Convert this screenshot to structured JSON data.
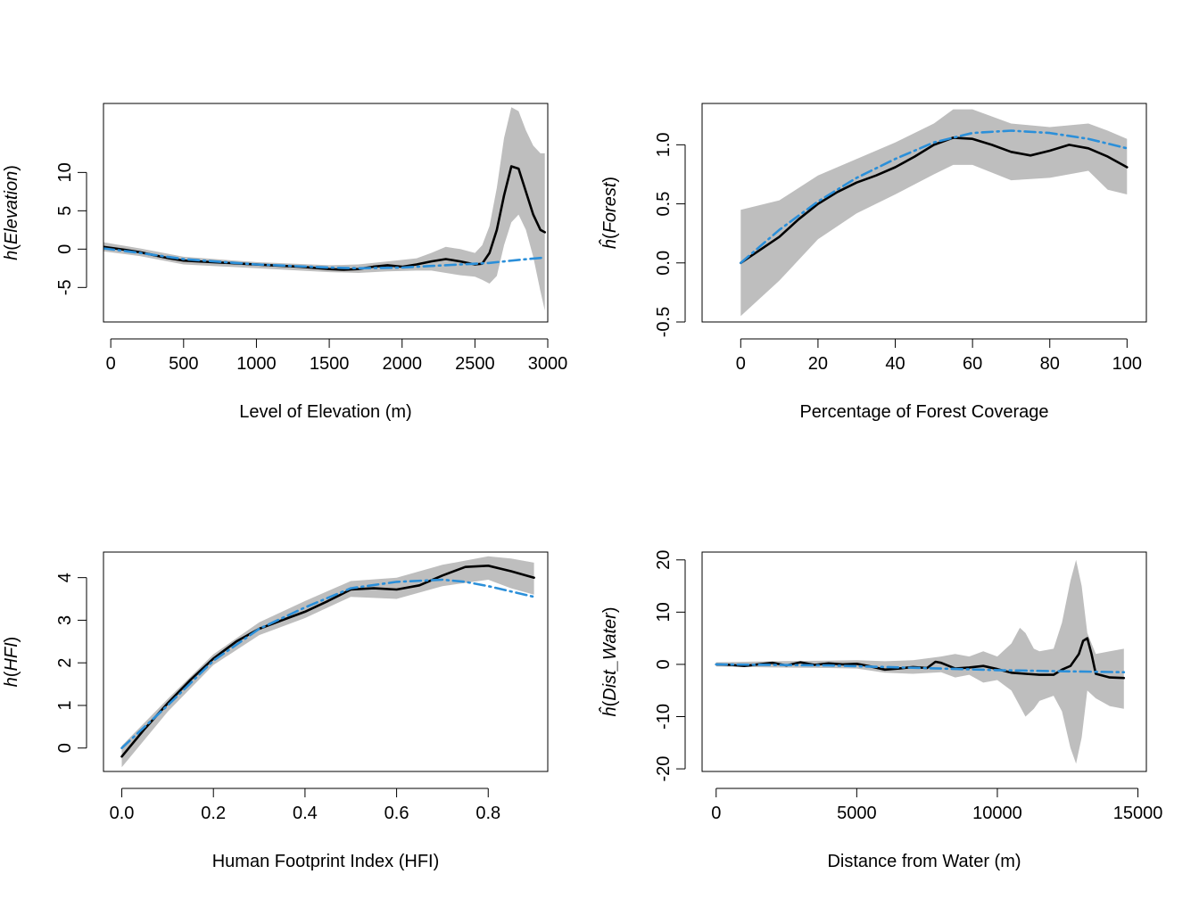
{
  "colors": {
    "estimate": "#000000",
    "reference": "#2b8fd9",
    "band": "#bebebe",
    "axis": "#000000"
  },
  "chart_data": [
    {
      "type": "line",
      "xlabel": "Level of Elevation (m)",
      "ylabel": {
        "prefix": "h",
        "hat": false,
        "var": "Elevation"
      },
      "xticks": [
        0,
        500,
        1000,
        1500,
        2000,
        2500,
        3000
      ],
      "yticks": [
        -5,
        0,
        5,
        10
      ],
      "xlim": [
        -50,
        3000
      ],
      "ylim": [
        -9.5,
        19
      ],
      "grid": false,
      "series": [
        {
          "role": "estimate",
          "x": [
            -50,
            100,
            200,
            300,
            400,
            500,
            700,
            900,
            1100,
            1300,
            1500,
            1600,
            1700,
            1800,
            1900,
            2000,
            2100,
            2200,
            2300,
            2400,
            2500,
            2550,
            2600,
            2650,
            2700,
            2750,
            2800,
            2850,
            2900,
            2950,
            2980
          ],
          "y": [
            0.3,
            -0.1,
            -0.4,
            -0.8,
            -1.2,
            -1.5,
            -1.7,
            -1.9,
            -2.1,
            -2.3,
            -2.6,
            -2.7,
            -2.6,
            -2.3,
            -2.1,
            -2.3,
            -2.0,
            -1.6,
            -1.3,
            -1.6,
            -2.0,
            -1.9,
            -0.5,
            2.5,
            7.0,
            10.8,
            10.5,
            7.5,
            4.5,
            2.5,
            2.2
          ]
        },
        {
          "role": "reference",
          "x": [
            -50,
            200,
            500,
            1000,
            1500,
            1700,
            2000,
            2200,
            2400,
            2600,
            2800,
            2980
          ],
          "y": [
            0.1,
            -0.5,
            -1.3,
            -2.0,
            -2.4,
            -2.5,
            -2.4,
            -2.2,
            -2.0,
            -1.8,
            -1.4,
            -1.1
          ]
        }
      ],
      "band": {
        "x": [
          -50,
          200,
          500,
          1000,
          1500,
          1700,
          1900,
          2100,
          2200,
          2300,
          2400,
          2500,
          2550,
          2600,
          2650,
          2700,
          2750,
          2800,
          2850,
          2900,
          2950,
          2980
        ],
        "upper": [
          0.9,
          0.1,
          -1.0,
          -1.7,
          -2.1,
          -2.0,
          -1.6,
          -1.2,
          -0.5,
          0.3,
          0.0,
          -0.5,
          0.5,
          3.0,
          8.0,
          14.5,
          18.5,
          18.0,
          15.5,
          13.5,
          12.5,
          12.5
        ],
        "lower": [
          -0.3,
          -0.9,
          -2.0,
          -2.5,
          -3.0,
          -3.1,
          -2.9,
          -2.8,
          -2.8,
          -3.1,
          -3.4,
          -3.6,
          -4.0,
          -4.5,
          -3.5,
          0.5,
          3.5,
          4.5,
          2.5,
          -1.0,
          -5.5,
          -8.0
        ]
      }
    },
    {
      "type": "line",
      "xlabel": "Percentage of Forest Coverage",
      "ylabel": {
        "prefix": "h",
        "hat": true,
        "var": "Forest"
      },
      "xticks": [
        0,
        20,
        40,
        60,
        80,
        100
      ],
      "yticks": [
        -0.5,
        0.0,
        0.5,
        1.0
      ],
      "ytick_labels": [
        "-0.5",
        "0.0",
        "0.5",
        "1.0"
      ],
      "xlim": [
        0,
        100
      ],
      "ylim": [
        -0.5,
        1.35
      ],
      "grid": false,
      "series": [
        {
          "role": "estimate",
          "x": [
            0,
            5,
            10,
            15,
            20,
            25,
            30,
            35,
            40,
            45,
            50,
            55,
            60,
            65,
            70,
            75,
            80,
            85,
            90,
            95,
            100
          ],
          "y": [
            0.0,
            0.11,
            0.22,
            0.37,
            0.5,
            0.6,
            0.68,
            0.74,
            0.81,
            0.9,
            1.0,
            1.06,
            1.05,
            1.0,
            0.94,
            0.91,
            0.95,
            1.0,
            0.97,
            0.9,
            0.81
          ]
        },
        {
          "role": "reference",
          "x": [
            0,
            10,
            20,
            30,
            40,
            50,
            60,
            70,
            80,
            90,
            100
          ],
          "y": [
            0.0,
            0.28,
            0.52,
            0.72,
            0.88,
            1.02,
            1.1,
            1.12,
            1.1,
            1.05,
            0.97
          ]
        }
      ],
      "band": {
        "x": [
          0,
          10,
          20,
          30,
          40,
          50,
          55,
          60,
          70,
          80,
          90,
          95,
          100
        ],
        "upper": [
          0.45,
          0.53,
          0.74,
          0.88,
          1.02,
          1.18,
          1.3,
          1.3,
          1.18,
          1.15,
          1.18,
          1.12,
          1.05
        ],
        "lower": [
          -0.45,
          -0.15,
          0.2,
          0.42,
          0.58,
          0.75,
          0.83,
          0.83,
          0.7,
          0.72,
          0.78,
          0.62,
          0.58
        ]
      }
    },
    {
      "type": "line",
      "xlabel": "Human Footprint Index (HFI)",
      "ylabel": {
        "prefix": "h",
        "hat": false,
        "var": "HFI"
      },
      "xticks": [
        0.0,
        0.2,
        0.4,
        0.6,
        0.8
      ],
      "xtick_labels": [
        "0.0",
        "0.2",
        "0.4",
        "0.6",
        "0.8"
      ],
      "yticks": [
        0,
        1,
        2,
        3,
        4
      ],
      "xlim": [
        0,
        0.9
      ],
      "ylim": [
        -0.55,
        4.6
      ],
      "grid": false,
      "series": [
        {
          "role": "estimate",
          "x": [
            0.0,
            0.05,
            0.1,
            0.15,
            0.2,
            0.25,
            0.3,
            0.35,
            0.4,
            0.45,
            0.5,
            0.55,
            0.6,
            0.65,
            0.7,
            0.75,
            0.8,
            0.85,
            0.9
          ],
          "y": [
            -0.2,
            0.45,
            1.05,
            1.6,
            2.1,
            2.5,
            2.8,
            3.0,
            3.2,
            3.45,
            3.72,
            3.75,
            3.72,
            3.82,
            4.05,
            4.25,
            4.28,
            4.15,
            4.0
          ]
        },
        {
          "role": "reference",
          "x": [
            0.0,
            0.1,
            0.2,
            0.3,
            0.4,
            0.5,
            0.6,
            0.7,
            0.75,
            0.8,
            0.9
          ],
          "y": [
            0.0,
            1.0,
            2.05,
            2.8,
            3.3,
            3.75,
            3.9,
            3.95,
            3.9,
            3.8,
            3.55
          ]
        }
      ],
      "band": {
        "x": [
          0.0,
          0.1,
          0.2,
          0.3,
          0.4,
          0.5,
          0.6,
          0.7,
          0.8,
          0.85,
          0.9
        ],
        "upper": [
          0.05,
          1.15,
          2.2,
          2.95,
          3.45,
          3.92,
          4.0,
          4.3,
          4.5,
          4.45,
          4.35
        ],
        "lower": [
          -0.45,
          0.85,
          1.95,
          2.65,
          3.05,
          3.55,
          3.5,
          3.8,
          3.95,
          3.75,
          3.6
        ]
      }
    },
    {
      "type": "line",
      "xlabel": "Distance from Water (m)",
      "ylabel": {
        "prefix": "h",
        "hat": true,
        "var": "Dist_Water"
      },
      "xticks": [
        0,
        5000,
        10000,
        15000
      ],
      "yticks": [
        -20,
        -10,
        0,
        10,
        20
      ],
      "xlim": [
        0,
        15000
      ],
      "ylim": [
        -20.5,
        21.5
      ],
      "grid": false,
      "series": [
        {
          "role": "estimate",
          "x": [
            0,
            500,
            1000,
            1500,
            2000,
            2500,
            3000,
            3500,
            4000,
            4500,
            5000,
            5500,
            6000,
            6500,
            7000,
            7500,
            7800,
            8000,
            8500,
            9000,
            9500,
            10000,
            10500,
            11000,
            11500,
            12000,
            12300,
            12600,
            12900,
            13050,
            13200,
            13350,
            13500,
            14000,
            14500
          ],
          "y": [
            0.0,
            -0.1,
            -0.3,
            0.0,
            0.3,
            -0.2,
            0.4,
            -0.1,
            0.2,
            0.0,
            0.1,
            -0.4,
            -1.0,
            -0.8,
            -0.5,
            -0.7,
            0.5,
            0.3,
            -0.8,
            -0.6,
            -0.3,
            -0.9,
            -1.6,
            -1.8,
            -2.0,
            -2.0,
            -1.0,
            -0.3,
            2.0,
            4.5,
            5.0,
            2.0,
            -1.8,
            -2.5,
            -2.6
          ]
        },
        {
          "role": "reference",
          "x": [
            0,
            2000,
            4000,
            6000,
            8000,
            10000,
            12000,
            14500
          ],
          "y": [
            0.0,
            -0.1,
            -0.2,
            -0.5,
            -0.8,
            -1.1,
            -1.3,
            -1.5
          ]
        }
      ],
      "band": {
        "x": [
          0,
          2000,
          4000,
          5000,
          6000,
          7000,
          8000,
          8500,
          9000,
          9500,
          10000,
          10500,
          10800,
          11000,
          11300,
          11500,
          12000,
          12300,
          12600,
          12800,
          13000,
          13200,
          13500,
          14000,
          14500
        ],
        "upper": [
          0.4,
          0.6,
          0.7,
          0.8,
          0.6,
          0.8,
          1.5,
          2.0,
          1.5,
          2.5,
          1.5,
          4.0,
          7.0,
          6.0,
          3.0,
          2.5,
          3.0,
          8.0,
          16.0,
          20.0,
          15.0,
          6.0,
          2.0,
          2.5,
          3.0
        ],
        "lower": [
          -0.4,
          -0.6,
          -0.7,
          -0.8,
          -1.6,
          -1.8,
          -1.5,
          -2.5,
          -2.0,
          -3.5,
          -3.0,
          -5.0,
          -8.0,
          -10.0,
          -8.5,
          -7.0,
          -6.0,
          -9.0,
          -16.0,
          -19.0,
          -14.0,
          -5.0,
          -6.5,
          -8.0,
          -8.5
        ]
      }
    }
  ]
}
